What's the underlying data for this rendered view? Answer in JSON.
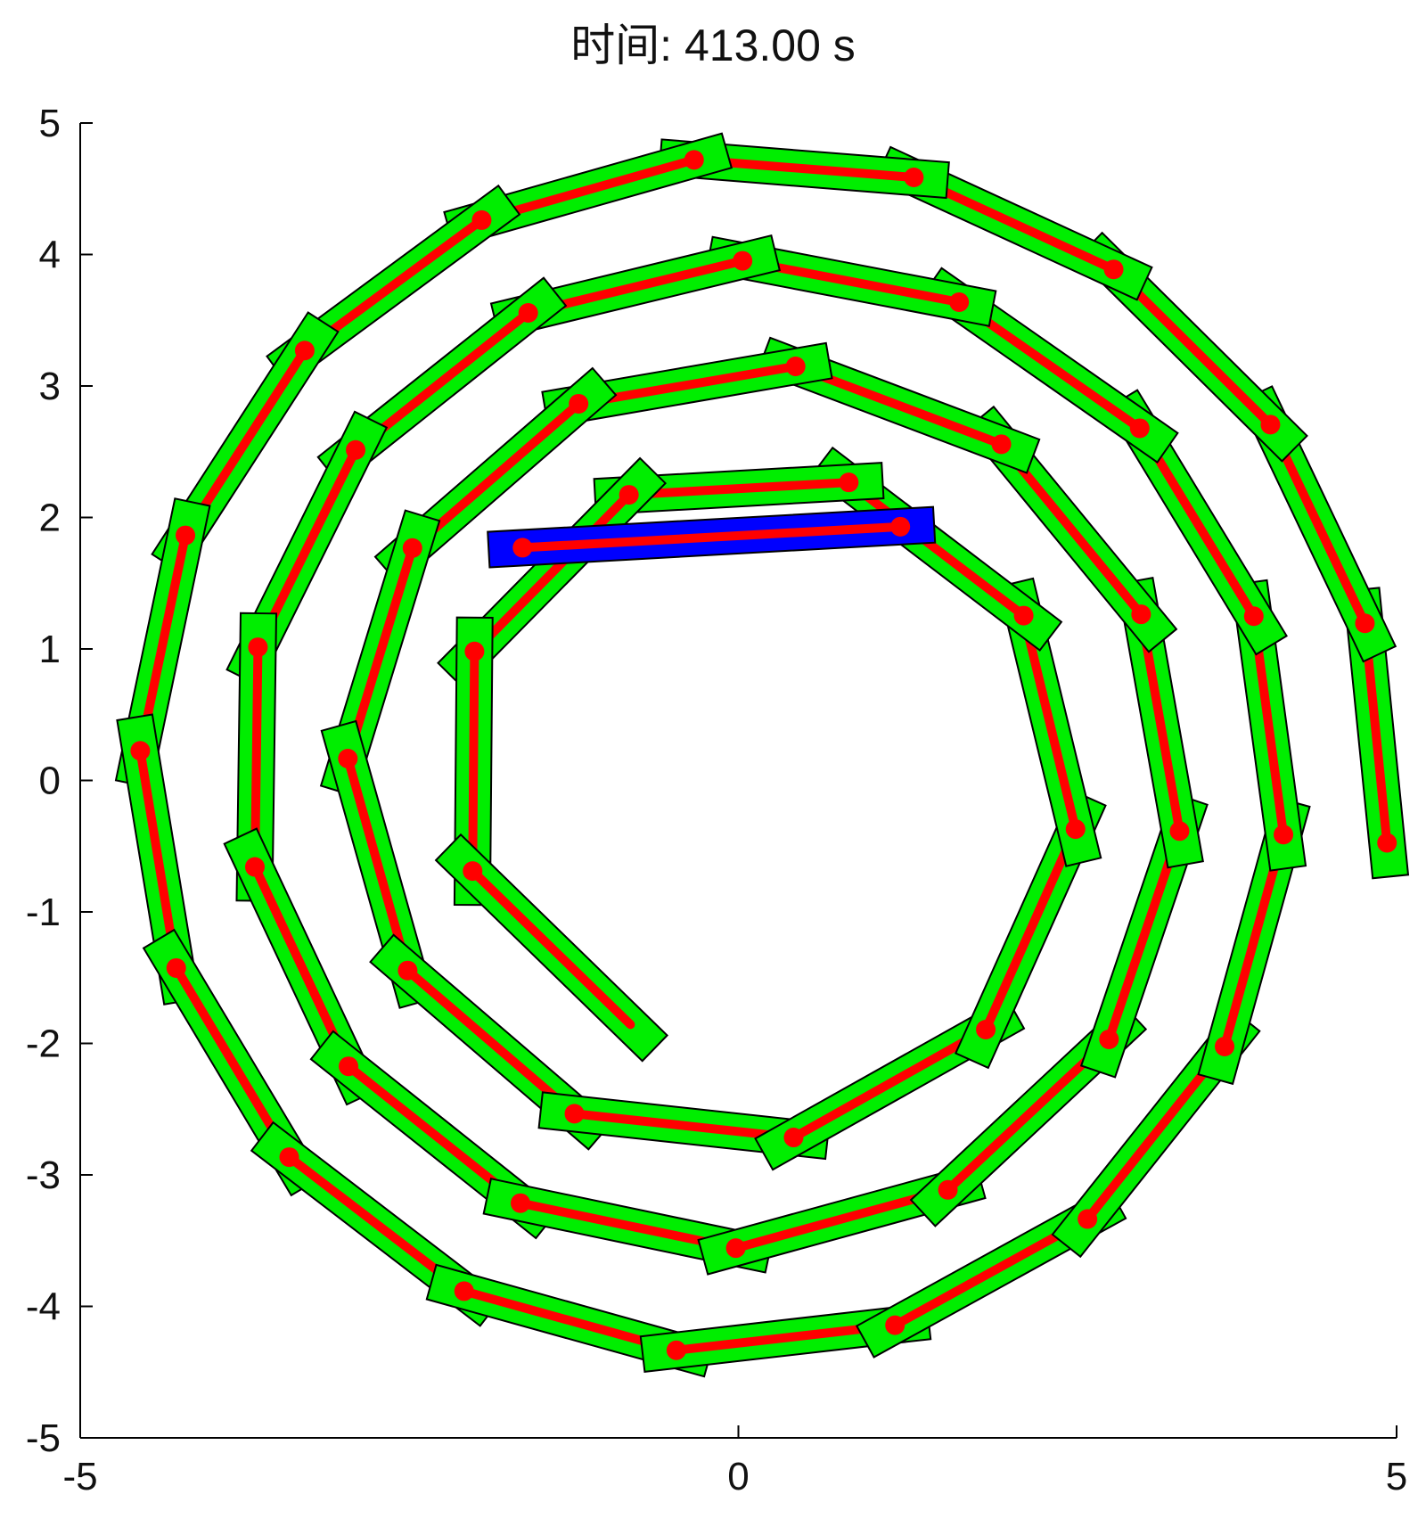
{
  "chart_data": {
    "type": "scatter",
    "title": "时间: 413.00 s",
    "xlabel": "",
    "ylabel": "",
    "xlim": [
      -5,
      5
    ],
    "ylim": [
      -5,
      5
    ],
    "x_ticks": [
      "-5",
      "0",
      "5"
    ],
    "y_ticks": [
      "5",
      "4",
      "3",
      "2",
      "1",
      "0",
      "-1",
      "-2",
      "-3",
      "-4",
      "-5"
    ],
    "grid": false,
    "spiral": {
      "center": [
        0.0,
        0.0
      ],
      "r_start": 4.95,
      "r_end": 1.95,
      "theta_start_deg": -5.5,
      "turns": 3.8,
      "segment_length": 1.67,
      "direction": "counterclockwise"
    },
    "head_segment": {
      "x1": -1.64,
      "y1": 1.77,
      "x2": 1.23,
      "y2": 1.93
    },
    "colors": {
      "body": "#00ee00",
      "head": "#0000ff",
      "centerline": "#ff0000",
      "hinge": "#ff0000",
      "outline": "#000000"
    }
  }
}
